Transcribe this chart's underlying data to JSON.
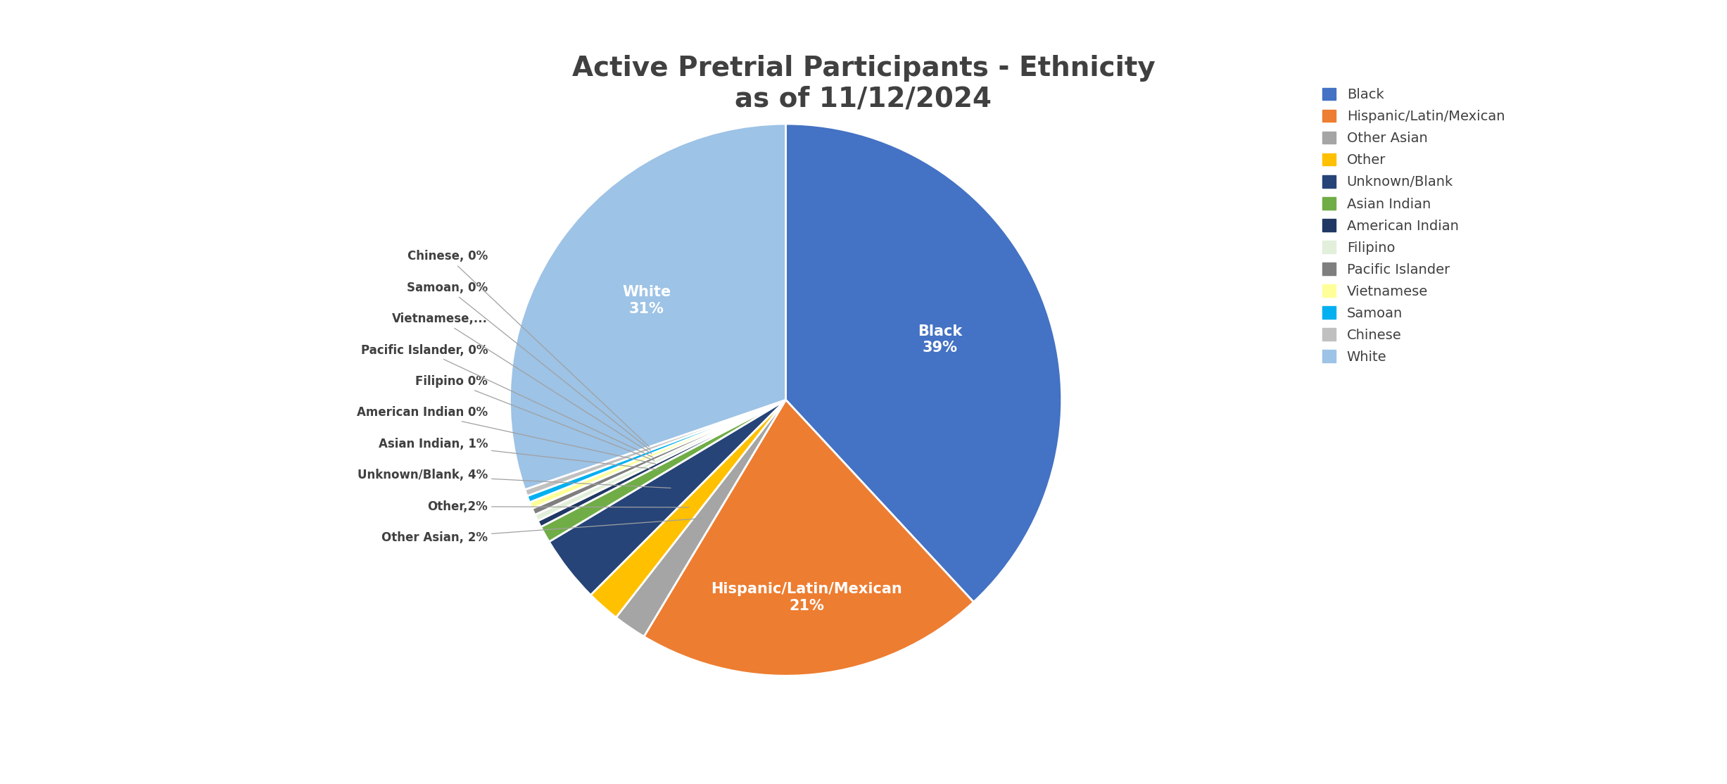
{
  "title": "Active Pretrial Participants - Ethnicity\nas of 11/12/2024",
  "labels": [
    "Black",
    "Hispanic/Latin/Mexican",
    "Other Asian",
    "Other",
    "Unknown/Blank",
    "Asian Indian",
    "American Indian",
    "Filipino",
    "Pacific Islander",
    "Vietnamese",
    "Samoan",
    "Chinese",
    "White"
  ],
  "values": [
    39,
    21,
    2,
    2,
    4,
    1,
    0.4,
    0.4,
    0.4,
    0.4,
    0.4,
    0.4,
    31
  ],
  "colors": [
    "#4472C4",
    "#ED7D31",
    "#A5A5A5",
    "#FFC000",
    "#264478",
    "#70AD47",
    "#203864",
    "#E2EFDA",
    "#7F7F7F",
    "#FFFF99",
    "#00B0F0",
    "#C0C0C0",
    "#9DC3E6"
  ],
  "legend_labels": [
    "Black",
    "Hispanic/Latin/Mexican",
    "Other Asian",
    "Other",
    "Unknown/Blank",
    "Asian Indian",
    "American Indian",
    "Filipino",
    "Pacific Islander",
    "Vietnamese",
    "Samoan",
    "Chinese",
    "White"
  ],
  "outside_labels": [
    {
      "idx": 2,
      "text": "Other Asian, 2%"
    },
    {
      "idx": 3,
      "text": "Other,2%"
    },
    {
      "idx": 4,
      "text": "Unknown/Blank, 4%"
    },
    {
      "idx": 5,
      "text": "Asian Indian, 1%"
    },
    {
      "idx": 6,
      "text": "American Indian 0%"
    },
    {
      "idx": 7,
      "text": "Filipino 0%"
    },
    {
      "idx": 8,
      "text": "Pacific Islander, 0%"
    },
    {
      "idx": 9,
      "text": "Vietnamese,..."
    },
    {
      "idx": 10,
      "text": "Samoan, 0%"
    },
    {
      "idx": 11,
      "text": "Chinese, 0%"
    }
  ],
  "inside_labels": [
    {
      "idx": 0,
      "text": "Black\n39%",
      "r": 0.6
    },
    {
      "idx": 1,
      "text": "Hispanic/Latin/Mexican\n21%",
      "r": 0.72
    },
    {
      "idx": 12,
      "text": "White\n31%",
      "r": 0.62
    }
  ],
  "background_color": "#FFFFFF",
  "title_fontsize": 28,
  "title_color": "#404040",
  "legend_fontsize": 14
}
